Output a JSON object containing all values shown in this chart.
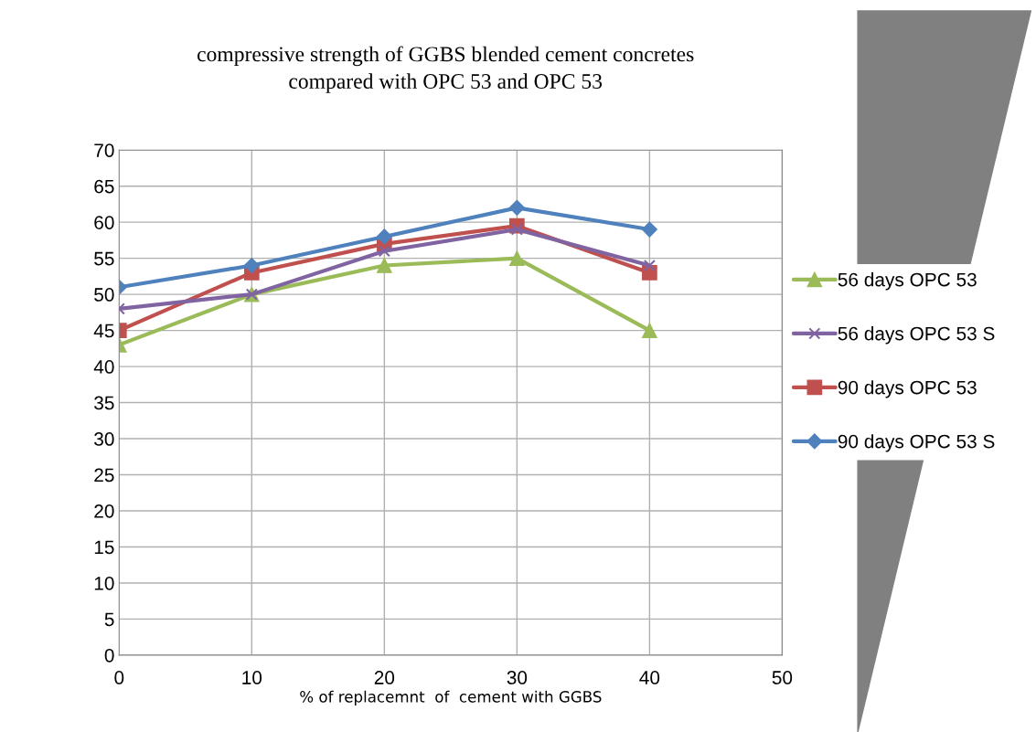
{
  "chart_data": {
    "type": "line",
    "title": "compressive strength of GGBS blended cement concretes\ncompared with OPC 53 and OPC 53",
    "xlabel": "% of replacemnt  of  cement with GGBS",
    "x": [
      0,
      10,
      20,
      30,
      40
    ],
    "series": [
      {
        "name": "56 days OPC 53",
        "color": "#9bbb59",
        "marker": "triangle",
        "values": [
          43,
          50,
          54,
          55,
          45
        ]
      },
      {
        "name": "56 days OPC 53 S",
        "color": "#8064a2",
        "marker": "cross",
        "values": [
          48,
          50,
          56,
          59,
          54
        ]
      },
      {
        "name": "90 days OPC 53",
        "color": "#c0504d",
        "marker": "square",
        "values": [
          45,
          53,
          57,
          59.5,
          53
        ]
      },
      {
        "name": "90 days OPC 53 S",
        "color": "#4f81bd",
        "marker": "diamond",
        "values": [
          51,
          54,
          58,
          62,
          59
        ]
      }
    ],
    "xlim": [
      0,
      50
    ],
    "xticks": [
      0,
      10,
      20,
      30,
      40,
      50
    ],
    "ylim": [
      0,
      70
    ],
    "yticks": [
      0,
      5,
      10,
      15,
      20,
      25,
      30,
      35,
      40,
      45,
      50,
      55,
      60,
      65,
      70
    ],
    "grid": true,
    "legend": "right",
    "line_style": "solid"
  }
}
